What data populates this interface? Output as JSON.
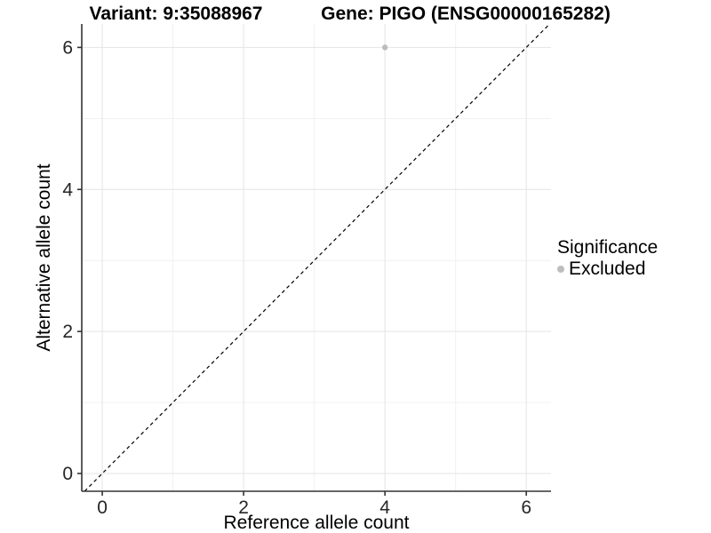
{
  "titles": {
    "variant": "Variant: 9:35088967",
    "gene": "Gene: PIGO (ENSG00000165282)"
  },
  "axes": {
    "x_title": "Reference allele count",
    "y_title": "Alternative allele count"
  },
  "legend": {
    "title": "Significance",
    "entries": [
      {
        "label": "Excluded",
        "color": "#bdbdbd"
      }
    ]
  },
  "colors": {
    "point": "#bdbdbd",
    "reference_line": "#000000",
    "axis_line": "#333333",
    "tick_text": "#262626",
    "grid_major": "#e4e4e4",
    "grid_minor": "#f1f1f1",
    "background": "#ffffff"
  },
  "chart_data": {
    "type": "scatter",
    "title": "Variant: 9:35088967   Gene: PIGO (ENSG00000165282)",
    "xlabel": "Reference allele count",
    "ylabel": "Alternative allele count",
    "xlim": [
      -0.29,
      6.35
    ],
    "ylim": [
      -0.25,
      6.33
    ],
    "x_ticks": [
      0,
      2,
      4,
      6
    ],
    "y_ticks": [
      0,
      2,
      4,
      6
    ],
    "x_minor_ticks": [
      1,
      3,
      5
    ],
    "y_minor_ticks": [
      1,
      3,
      5
    ],
    "grid": true,
    "legend_position": "right",
    "series": [
      {
        "name": "Excluded",
        "color": "#bdbdbd",
        "points": [
          {
            "x": 4,
            "y": 6
          }
        ]
      }
    ],
    "reference_line": {
      "type": "identity",
      "equation": "y = x",
      "style": "dashed",
      "color": "#000000"
    }
  }
}
